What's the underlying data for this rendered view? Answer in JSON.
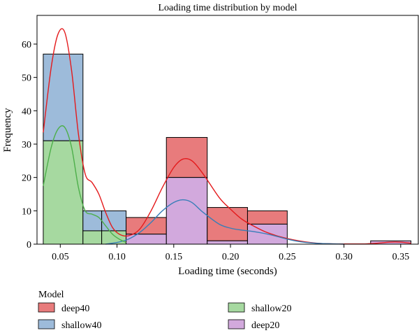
{
  "chart_data": {
    "type": "histogram",
    "title": "Loading time distribution by model",
    "xlabel": "Loading time (seconds)",
    "ylabel": "Frequency",
    "xlim": [
      0.0295,
      0.3655
    ],
    "ylim": [
      0,
      68.6
    ],
    "xticks": [
      0.05,
      0.1,
      0.15,
      0.2,
      0.25,
      0.3,
      0.35
    ],
    "xtick_labels": [
      "0.05",
      "0.10",
      "0.15",
      "0.20",
      "0.25",
      "0.30",
      "0.35"
    ],
    "yticks": [
      0,
      10,
      20,
      30,
      40,
      50,
      60
    ],
    "ytick_labels": [
      "0",
      "10",
      "20",
      "30",
      "40",
      "50",
      "60"
    ],
    "bin_edges": [
      0.035,
      0.07,
      0.0865,
      0.108,
      0.1435,
      0.1795,
      0.215,
      0.25,
      0.287,
      0.3235,
      0.359
    ],
    "grid": false,
    "legend": {
      "title": "Model",
      "placement": "bottom",
      "entries": [
        "deep40",
        "shallow40",
        "shallow20",
        "deep20"
      ]
    },
    "series": [
      {
        "name": "deep40",
        "color": "#e87b7c",
        "line_color": "#e41a1c",
        "bars": [
          {
            "x0": 0.035,
            "x1": 0.07,
            "count": 0
          },
          {
            "x0": 0.07,
            "x1": 0.0865,
            "count": 0
          },
          {
            "x0": 0.0865,
            "x1": 0.108,
            "count": 0
          },
          {
            "x0": 0.108,
            "x1": 0.1435,
            "count": 5
          },
          {
            "x0": 0.1435,
            "x1": 0.1795,
            "count": 12
          },
          {
            "x0": 0.1795,
            "x1": 0.215,
            "count": 10
          },
          {
            "x0": 0.215,
            "x1": 0.25,
            "count": 4
          },
          {
            "x0": 0.25,
            "x1": 0.287,
            "count": 0
          },
          {
            "x0": 0.287,
            "x1": 0.3235,
            "count": 0
          },
          {
            "x0": 0.3235,
            "x1": 0.359,
            "count": 0
          }
        ],
        "kde_x": [
          0.035,
          0.042,
          0.048,
          0.054,
          0.06,
          0.066,
          0.072,
          0.078,
          0.084,
          0.09,
          0.096,
          0.102,
          0.11,
          0.12,
          0.13,
          0.14,
          0.15,
          0.158,
          0.166,
          0.176,
          0.19,
          0.2,
          0.21,
          0.22,
          0.23,
          0.24,
          0.25,
          0.26,
          0.27,
          0.28,
          0.29,
          0.3,
          0.31,
          0.32,
          0.33,
          0.34,
          0.35,
          0.359
        ],
        "kde_y": [
          33.5,
          53,
          63,
          63.5,
          52,
          33,
          21,
          18.5,
          15,
          9.5,
          5,
          3,
          2.5,
          4.5,
          10,
          17,
          23,
          25.5,
          25,
          21,
          14,
          10.5,
          7.5,
          5.5,
          3.8,
          2.6,
          1.7,
          1,
          0.5,
          0.2,
          0.1,
          0.05,
          0.05,
          0.1,
          0.3,
          0.6,
          0.6,
          0.3
        ]
      },
      {
        "name": "shallow40",
        "color": "#9dbbda",
        "line_color": "#377eb8",
        "bars": [
          {
            "x0": 0.035,
            "x1": 0.07,
            "count": 26
          },
          {
            "x0": 0.07,
            "x1": 0.0865,
            "count": 6
          },
          {
            "x0": 0.0865,
            "x1": 0.108,
            "count": 6
          },
          {
            "x0": 0.108,
            "x1": 0.1435,
            "count": 0
          },
          {
            "x0": 0.1435,
            "x1": 0.1795,
            "count": 0
          },
          {
            "x0": 0.1795,
            "x1": 0.215,
            "count": 0
          },
          {
            "x0": 0.215,
            "x1": 0.25,
            "count": 0
          },
          {
            "x0": 0.25,
            "x1": 0.287,
            "count": 0
          },
          {
            "x0": 0.287,
            "x1": 0.3235,
            "count": 0
          },
          {
            "x0": 0.3235,
            "x1": 0.359,
            "count": 0
          }
        ],
        "kde_x": [
          0.09,
          0.1,
          0.11,
          0.12,
          0.13,
          0.14,
          0.15,
          0.158,
          0.166,
          0.176,
          0.19,
          0.2,
          0.21,
          0.22,
          0.23,
          0.24,
          0.25,
          0.26,
          0.27,
          0.28,
          0.29,
          0.3
        ],
        "kde_y": [
          0,
          0.5,
          1.5,
          3.5,
          6.5,
          10,
          12.5,
          13.3,
          12.5,
          9.5,
          6,
          4.8,
          4.2,
          3.8,
          3.2,
          2.4,
          1.5,
          0.8,
          0.4,
          0.2,
          0.1,
          0
        ]
      },
      {
        "name": "shallow20",
        "color": "#a6d9a0",
        "line_color": "#4daf4a",
        "bars": [
          {
            "x0": 0.035,
            "x1": 0.07,
            "count": 31
          },
          {
            "x0": 0.07,
            "x1": 0.0865,
            "count": 4
          },
          {
            "x0": 0.0865,
            "x1": 0.108,
            "count": 4
          },
          {
            "x0": 0.108,
            "x1": 0.1435,
            "count": 0
          },
          {
            "x0": 0.1435,
            "x1": 0.1795,
            "count": 0
          },
          {
            "x0": 0.1795,
            "x1": 0.215,
            "count": 0
          },
          {
            "x0": 0.215,
            "x1": 0.25,
            "count": 0
          },
          {
            "x0": 0.25,
            "x1": 0.287,
            "count": 0
          },
          {
            "x0": 0.287,
            "x1": 0.3235,
            "count": 0
          },
          {
            "x0": 0.3235,
            "x1": 0.359,
            "count": 0
          }
        ],
        "kde_x": [
          0.035,
          0.042,
          0.048,
          0.054,
          0.06,
          0.066,
          0.072,
          0.078,
          0.084,
          0.09,
          0.096,
          0.102,
          0.108
        ],
        "kde_y": [
          17.5,
          29,
          34.5,
          35,
          29,
          17,
          10,
          9,
          8,
          5.5,
          3,
          1.5,
          0.5
        ]
      },
      {
        "name": "deep20",
        "color": "#d2a9dd",
        "line_color": "#984ea3",
        "bars": [
          {
            "x0": 0.035,
            "x1": 0.07,
            "count": 0
          },
          {
            "x0": 0.07,
            "x1": 0.0865,
            "count": 0
          },
          {
            "x0": 0.0865,
            "x1": 0.108,
            "count": 0
          },
          {
            "x0": 0.108,
            "x1": 0.1435,
            "count": 3
          },
          {
            "x0": 0.1435,
            "x1": 0.1795,
            "count": 20
          },
          {
            "x0": 0.1795,
            "x1": 0.215,
            "count": 1
          },
          {
            "x0": 0.215,
            "x1": 0.25,
            "count": 6
          },
          {
            "x0": 0.25,
            "x1": 0.287,
            "count": 0
          },
          {
            "x0": 0.287,
            "x1": 0.3235,
            "count": 0
          },
          {
            "x0": 0.3235,
            "x1": 0.359,
            "count": 1
          }
        ],
        "kde_x": [],
        "kde_y": []
      }
    ]
  }
}
